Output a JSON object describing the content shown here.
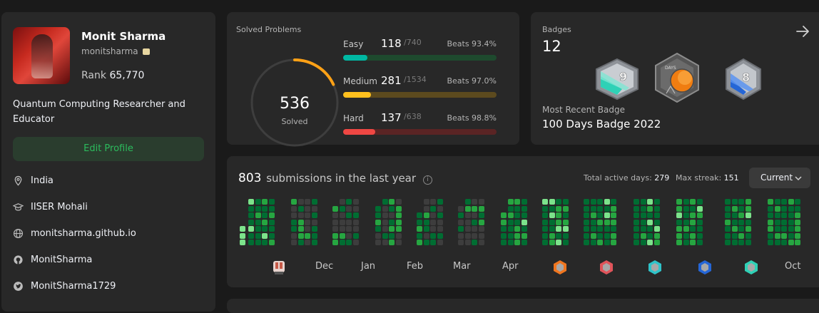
{
  "profile": {
    "name": "Monit Sharma",
    "username": "monitsharma",
    "rank_label": "Rank",
    "rank_value": "65,770",
    "about": "Quantum Computing Researcher and Educator",
    "edit_label": "Edit Profile",
    "info": [
      {
        "icon": "location-icon",
        "text": "India"
      },
      {
        "icon": "graduation-cap-icon",
        "text": "IISER Mohali"
      },
      {
        "icon": "globe-icon",
        "text": "monitsharma.github.io"
      },
      {
        "icon": "github-icon",
        "text": "MonitSharma"
      },
      {
        "icon": "twitter-icon",
        "text": "MonitSharma1729"
      }
    ]
  },
  "solved": {
    "title": "Solved Problems",
    "total": "536",
    "total_label": "Solved",
    "progress_fraction": 0.18,
    "difficulties": [
      {
        "name": "Easy",
        "count": "118",
        "total": "/740",
        "beats": "Beats 93.4%",
        "fraction": 0.16,
        "color": "#00b8a3",
        "track": "#1e4a2e"
      },
      {
        "name": "Medium",
        "count": "281",
        "total": "/1534",
        "beats": "Beats 97.0%",
        "fraction": 0.18,
        "color": "#ffc01e",
        "track": "#5c4a1e"
      },
      {
        "name": "Hard",
        "count": "137",
        "total": "/638",
        "beats": "Beats 98.8%",
        "fraction": 0.21,
        "color": "#ef4743",
        "track": "#5a2424"
      }
    ]
  },
  "badges": {
    "title": "Badges",
    "count": "12",
    "recent_label": "Most Recent Badge",
    "recent_name": "100 Days Badge 2022",
    "items": [
      {
        "icon": "sep-badge-icon",
        "text": "9"
      },
      {
        "icon": "days-badge-icon",
        "text": "DAYS"
      },
      {
        "icon": "aug-badge-icon",
        "text": "8"
      }
    ]
  },
  "submissions": {
    "count": "803",
    "title": "submissions in the last year",
    "active_days_label": "Total active days:",
    "active_days": "279",
    "max_streak_label": "Max streak:",
    "max_streak": "151",
    "dropdown_value": "Current",
    "months": [
      "Dec",
      "Jan",
      "Feb",
      "Mar",
      "Apr",
      "Oct"
    ],
    "colors": {
      "empty": "#3d3d3d",
      "level1": "#0e4429",
      "level2": "#006d32",
      "level3": "#26a641",
      "level4": "#7ce38b"
    }
  }
}
